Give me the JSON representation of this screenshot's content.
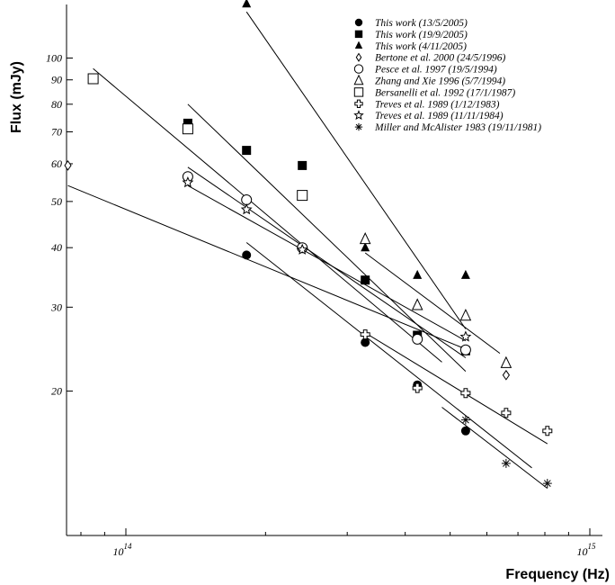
{
  "chart_data": {
    "type": "scatter",
    "xlabel": "Frequency (Hz)",
    "ylabel": "Flux (mJy)",
    "x_scale": "log",
    "y_scale": "log",
    "xlim": [
      70000000000000.0,
      1000000000000000.0
    ],
    "ylim": [
      10,
      140
    ],
    "x_ticks": [
      {
        "value": 100000000000000.0,
        "label": "10",
        "exp": "14"
      },
      {
        "value": 1000000000000000.0,
        "label": "10",
        "exp": "15"
      }
    ],
    "y_ticks": [
      {
        "value": 20,
        "label": "20"
      },
      {
        "value": 30,
        "label": "30"
      },
      {
        "value": 40,
        "label": "40"
      },
      {
        "value": 50,
        "label": "50"
      },
      {
        "value": 60,
        "label": "60"
      },
      {
        "value": 70,
        "label": "70"
      },
      {
        "value": 80,
        "label": "80"
      },
      {
        "value": 90,
        "label": "90"
      },
      {
        "value": 100,
        "label": "100"
      }
    ],
    "grid": false,
    "legend_position": "top-right",
    "series": [
      {
        "name": "This work (13/5/2005)",
        "marker": "filled-circle",
        "x": [
          182000000000000.0,
          328000000000000.0,
          425000000000000.0,
          540000000000000.0
        ],
        "y": [
          38.6,
          25.3,
          20.6,
          16.5
        ],
        "fit": {
          "x": [
            182000000000000.0,
            750000000000000.0
          ],
          "y": [
            41,
            13.8
          ]
        }
      },
      {
        "name": "This work (19/9/2005)",
        "marker": "filled-square",
        "x": [
          136000000000000.0,
          182000000000000.0,
          240000000000000.0,
          328000000000000.0,
          425000000000000.0,
          540000000000000.0
        ],
        "y": [
          73,
          64,
          59.5,
          34.2,
          26.2,
          24.3
        ],
        "fit": {
          "x": [
            136000000000000.0,
            540000000000000.0
          ],
          "y": [
            80,
            22
          ]
        }
      },
      {
        "name": "This work (4/11/2005)",
        "marker": "filled-triangle",
        "x": [
          182000000000000.0,
          328000000000000.0,
          425000000000000.0,
          540000000000000.0
        ],
        "y": [
          130,
          40,
          35,
          35
        ],
        "fit": {
          "x": [
            182000000000000.0,
            540000000000000.0
          ],
          "y": [
            125,
            27
          ]
        }
      },
      {
        "name": "Bertone et al. 2000 (24/5/1996)",
        "marker": "open-diamond",
        "x": [
          75000000000000.0,
          660000000000000.0
        ],
        "y": [
          59.5,
          21.6
        ],
        "fit": {
          "x": [
            75000000000000.0,
            540000000000000.0
          ],
          "y": [
            54,
            24.5
          ]
        }
      },
      {
        "name": "Pesce et al. 1997 (19/5/1994)",
        "marker": "open-circle",
        "x": [
          136000000000000.0,
          182000000000000.0,
          240000000000000.0,
          425000000000000.0,
          540000000000000.0
        ],
        "y": [
          56.4,
          50.4,
          40,
          25.7,
          24.4
        ],
        "fit": {
          "x": [
            136000000000000.0,
            540000000000000.0
          ],
          "y": [
            59,
            23.5
          ]
        }
      },
      {
        "name": "Zhang and Xie 1996 (5/7/1994)",
        "marker": "open-triangle",
        "x": [
          328000000000000.0,
          425000000000000.0,
          540000000000000.0,
          660000000000000.0
        ],
        "y": [
          41.7,
          30.3,
          28.8,
          22.9
        ],
        "fit": {
          "x": [
            328000000000000.0,
            640000000000000.0
          ],
          "y": [
            39,
            24
          ]
        }
      },
      {
        "name": "Bersanelli et al. 1992 (17/1/1987)",
        "marker": "open-square",
        "x": [
          85000000000000.0,
          136000000000000.0,
          240000000000000.0
        ],
        "y": [
          90.5,
          71,
          51.5
        ],
        "fit": {
          "x": [
            85000000000000.0,
            480000000000000.0
          ],
          "y": [
            95,
            23
          ]
        }
      },
      {
        "name": "Treves et al. 1989 (1/12/1983)",
        "marker": "open-cross",
        "x": [
          328000000000000.0,
          425000000000000.0,
          540000000000000.0,
          660000000000000.0,
          810000000000000.0
        ],
        "y": [
          26.3,
          20.3,
          19.8,
          18,
          16.5
        ],
        "fit": {
          "x": [
            328000000000000.0,
            810000000000000.0
          ],
          "y": [
            26.5,
            15.5
          ]
        }
      },
      {
        "name": "Treves et al. 1989 (11/11/1984)",
        "marker": "open-star",
        "x": [
          136000000000000.0,
          182000000000000.0,
          240000000000000.0,
          540000000000000.0
        ],
        "y": [
          54.8,
          48.1,
          39.6,
          26
        ],
        "fit": {
          "x": [
            136000000000000.0,
            540000000000000.0
          ],
          "y": [
            54,
            25.5
          ]
        }
      },
      {
        "name": "Miller and McAlister 1983 (19/11/1981)",
        "marker": "asterisk",
        "x": [
          540000000000000.0,
          660000000000000.0,
          810000000000000.0
        ],
        "y": [
          17.4,
          14.1,
          12.8
        ],
        "fit": {
          "x": [
            480000000000000.0,
            810000000000000.0
          ],
          "y": [
            18.5,
            12.5
          ]
        }
      }
    ]
  }
}
